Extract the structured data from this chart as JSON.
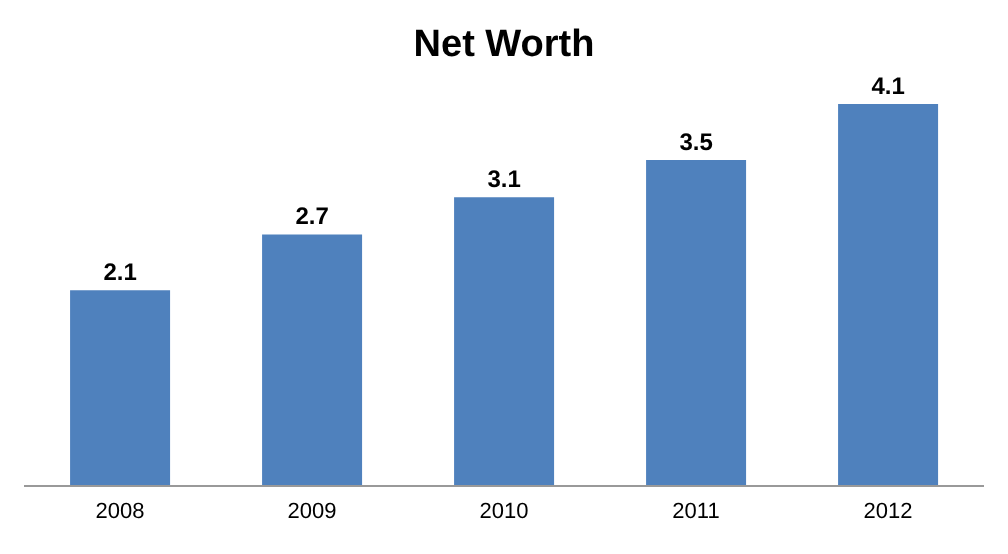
{
  "chart_data": {
    "type": "bar",
    "title": "Net Worth",
    "categories": [
      "2008",
      "2009",
      "2010",
      "2011",
      "2012"
    ],
    "values": [
      2.1,
      2.7,
      3.1,
      3.5,
      4.1
    ],
    "color": "#4f81bd",
    "data_labels": true,
    "tick_labels": "x"
  }
}
